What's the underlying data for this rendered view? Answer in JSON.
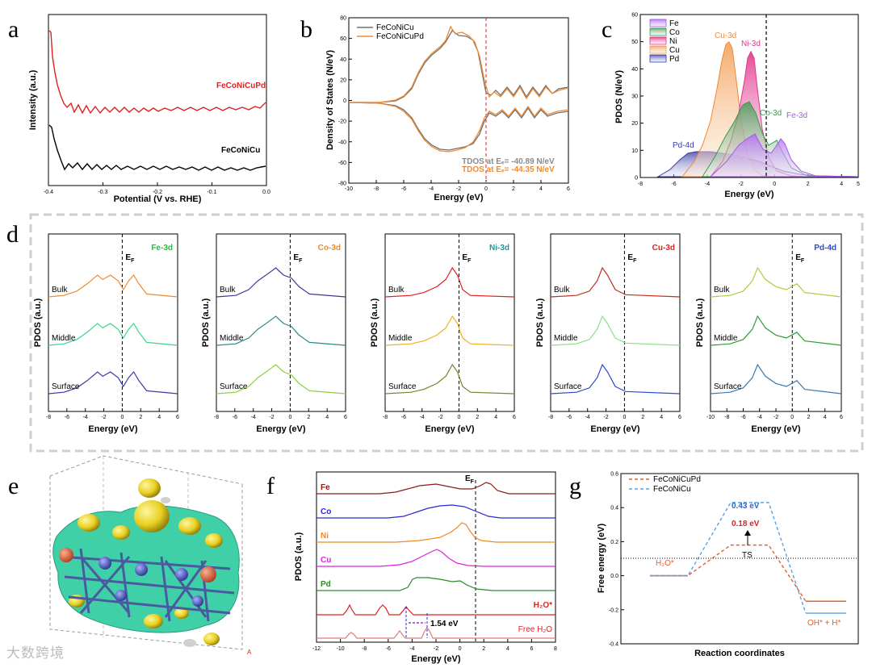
{
  "panels": {
    "a": "a",
    "b": "b",
    "c": "c",
    "d": "d",
    "e": "e",
    "f": "f",
    "g": "g"
  },
  "chart_data": [
    {
      "id": "a",
      "type": "line",
      "xlabel": "Potential (V vs. RHE)",
      "ylabel": "Intensity (a.u.)",
      "xlim": [
        -0.4,
        0.0
      ],
      "xticks": [
        "-0.4",
        "-0.3",
        "-0.2",
        "-0.1",
        "0.0"
      ],
      "series": [
        {
          "name": "FeCoNiCuPd",
          "color": "#e02020"
        },
        {
          "name": "FeCoNiCu",
          "color": "#000000"
        }
      ]
    },
    {
      "id": "b",
      "type": "line",
      "xlabel": "Energy (eV)",
      "ylabel": "Density of States (N/eV)",
      "xlim": [
        -10,
        6
      ],
      "ylim": [
        -80,
        80
      ],
      "xticks": [
        "-10",
        "-8",
        "-6",
        "-4",
        "-2",
        "0",
        "2",
        "4",
        "6"
      ],
      "yticks": [
        "80",
        "60",
        "40",
        "20",
        "0",
        "-20",
        "-40",
        "-60",
        "-80"
      ],
      "legend": "top-left",
      "series": [
        {
          "name": "FeCoNiCu",
          "color": "#707070"
        },
        {
          "name": "FeCoNiCuPd",
          "color": "#f08a30"
        }
      ],
      "annotations": [
        {
          "text": "TDOS at Eₑ= -40.89 N/eV",
          "color": "#8a8a8a"
        },
        {
          "text": "TDOS at Eₑ= -44.35 N/eV",
          "color": "#f08a30"
        }
      ]
    },
    {
      "id": "c",
      "type": "area",
      "xlabel": "Energy (eV)",
      "ylabel": "PDOS (N/eV)",
      "xlim": [
        -8,
        5
      ],
      "ylim": [
        0,
        60
      ],
      "xticks": [
        "-8",
        "-6",
        "-4",
        "-2",
        "0",
        "2",
        "4"
      ],
      "yticks": [
        "0",
        "10",
        "20",
        "30",
        "40",
        "50",
        "60"
      ],
      "legend": "top-left",
      "series": [
        {
          "name": "Fe",
          "color": "#a25be0"
        },
        {
          "name": "Co",
          "color": "#3c9a4e"
        },
        {
          "name": "Ni",
          "color": "#e0368c"
        },
        {
          "name": "Cu",
          "color": "#f3a05a"
        },
        {
          "name": "Pd",
          "color": "#3a3aa8"
        }
      ],
      "annotations": [
        {
          "text": "Cu-3d",
          "color": "#f08a30"
        },
        {
          "text": "Ni-3d",
          "color": "#e0368c"
        },
        {
          "text": "Co-3d",
          "color": "#3c9a4e"
        },
        {
          "text": "Fe-3d",
          "color": "#a25be0"
        },
        {
          "text": "Pd-4d",
          "color": "#3a3aa8"
        }
      ]
    },
    {
      "id": "d",
      "type": "line",
      "xlabel": "Energy (eV)",
      "ylabel": "PDOS (a.u.)",
      "layers": [
        "Bulk",
        "Middle",
        "Surface"
      ],
      "ef": "E",
      "ef_sub": "F",
      "subplots": [
        {
          "title": "Fe-3d",
          "title_color": "#22c03a",
          "xticks": [
            "-8",
            "-6",
            "-4",
            "-2",
            "0",
            "2",
            "4",
            "6"
          ],
          "colors": [
            "#f08a30",
            "#3ad68a",
            "#3a3aa8"
          ]
        },
        {
          "title": "Co-3d",
          "title_color": "#f08a30",
          "xticks": [
            "-8",
            "-6",
            "-4",
            "-2",
            "0",
            "2",
            "4",
            "6"
          ],
          "colors": [
            "#3a3a90",
            "#2a8a8a",
            "#8ad040"
          ]
        },
        {
          "title": "Ni-3d",
          "title_color": "#1a9a9a",
          "xticks": [
            "-8",
            "-6",
            "-4",
            "-2",
            "0",
            "2",
            "4",
            "6"
          ],
          "colors": [
            "#e02020",
            "#f0b020",
            "#6a8a2a"
          ]
        },
        {
          "title": "Cu-3d",
          "title_color": "#e02020",
          "xticks": [
            "-8",
            "-6",
            "-4",
            "-2",
            "0",
            "2",
            "4",
            "6"
          ],
          "colors": [
            "#c03020",
            "#8ae08a",
            "#2a4ad0"
          ]
        },
        {
          "title": "Pd-4d",
          "title_color": "#2a4ad0",
          "xticks": [
            "-10",
            "-8",
            "-6",
            "-4",
            "-2",
            "0",
            "2",
            "4",
            "6"
          ],
          "colors": [
            "#a8d040",
            "#2aa030",
            "#3a7ab0"
          ]
        }
      ]
    },
    {
      "id": "f",
      "type": "line",
      "xlabel": "Energy (eV)",
      "ylabel": "PDOS (a.u.)",
      "xlim": [
        -12,
        8
      ],
      "xticks": [
        "-12",
        "-10",
        "-8",
        "-6",
        "-4",
        "-2",
        "0",
        "2",
        "4",
        "6",
        "8"
      ],
      "ef": "E",
      "ef_sub": "F",
      "series": [
        {
          "name": "Fe",
          "color": "#8a1a1a"
        },
        {
          "name": "Co",
          "color": "#2a2ad0"
        },
        {
          "name": "Ni",
          "color": "#f08a20"
        },
        {
          "name": "Cu",
          "color": "#e020e0"
        },
        {
          "name": "Pd",
          "color": "#2a8a2a"
        },
        {
          "name": "H₂O*",
          "color": "#e02020"
        },
        {
          "name": "Free H₂O",
          "color": "#e02020"
        }
      ],
      "annotations": [
        {
          "text": "1.54 eV",
          "color": "#000000"
        }
      ]
    },
    {
      "id": "g",
      "type": "line",
      "xlabel": "Reaction coordinates",
      "ylabel": "Free energy (eV)",
      "ylim": [
        -0.4,
        0.6
      ],
      "yticks": [
        "0.6",
        "0.4",
        "0.2",
        "0.0",
        "-0.2",
        "-0.4"
      ],
      "legend": "top-left",
      "series": [
        {
          "name": "FeCoNiCuPd",
          "color": "#e2622a",
          "values": [
            0.0,
            0.18,
            -0.15
          ]
        },
        {
          "name": "FeCoNiCu",
          "color": "#5aa0e0",
          "values": [
            0.0,
            0.43,
            -0.22
          ]
        }
      ],
      "annotations": [
        {
          "text": "0.43 eV",
          "color": "#2a6ad0"
        },
        {
          "text": "0.18 eV",
          "color": "#e02020"
        },
        {
          "text": "TS",
          "color": "#000000"
        },
        {
          "text": "H₂O*",
          "color": "#e2622a"
        },
        {
          "text": "OH* + H*",
          "color": "#e2622a"
        }
      ]
    }
  ],
  "watermark": "大数跨境"
}
